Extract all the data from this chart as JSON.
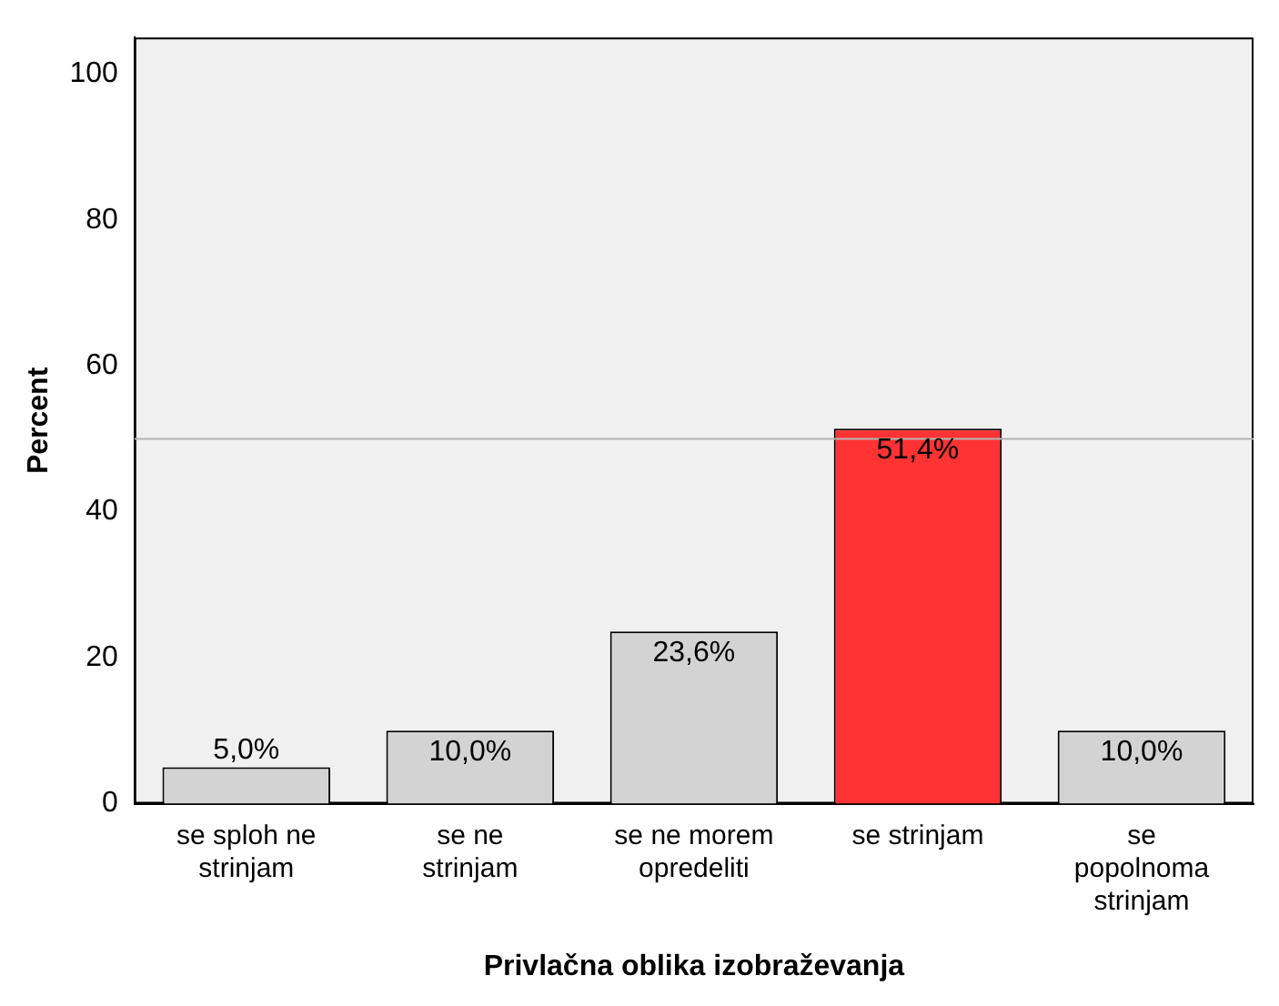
{
  "chart_data": {
    "type": "bar",
    "xlabel": "Privlačna oblika izobraževanja",
    "ylabel": "Percent",
    "categories": [
      "se sploh ne strinjam",
      "se ne strinjam",
      "se ne morem opredeliti",
      "se strinjam",
      "se popolnoma strinjam"
    ],
    "values": [
      5.0,
      10.0,
      23.6,
      51.4,
      10.0
    ],
    "colors": [
      "#d3d3d3",
      "#d3d3d3",
      "#d3d3d3",
      "#ff3333",
      "#d3d3d3"
    ],
    "value_labels": [
      "5,0%",
      "10,0%",
      "23,6%",
      "51,4%",
      "10,0%"
    ],
    "ylim": [
      0,
      105
    ],
    "yticks": [
      0,
      20,
      40,
      60,
      80,
      100
    ],
    "grid": false,
    "legend": false,
    "ref_lines": [
      {
        "axis": "y",
        "value": 50,
        "color": "#b4b4b4"
      }
    ]
  }
}
